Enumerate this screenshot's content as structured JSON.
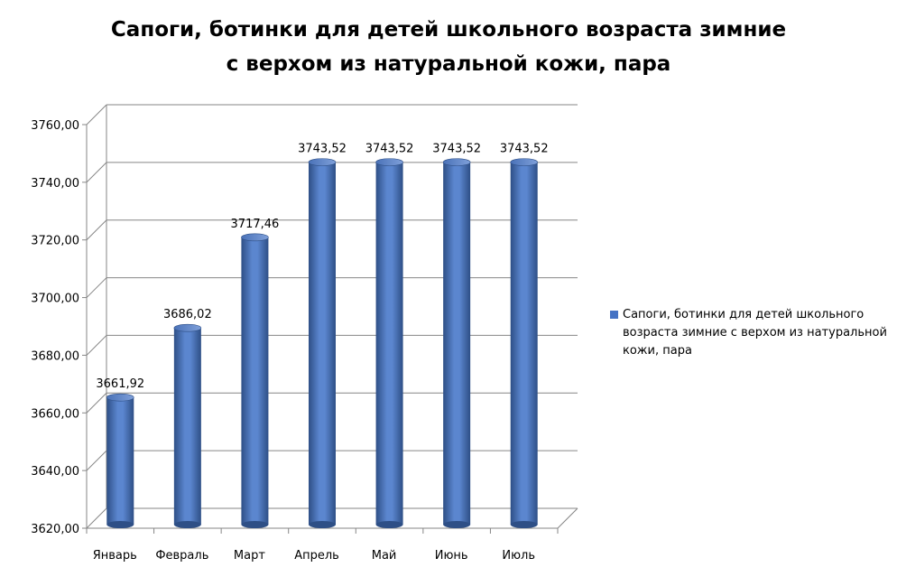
{
  "chart_data": {
    "type": "bar",
    "title_lines": [
      "Сапоги, ботинки для детей школьного возраста зимние",
      "с верхом из натуральной кожи, пара"
    ],
    "categories": [
      "Январь",
      "Февраль",
      "Март",
      "Апрель",
      "Май",
      "Июнь",
      "Июль"
    ],
    "series": [
      {
        "name": "Сапоги, ботинки для детей школьного возраста зимние с верхом из натуральной кожи, пара",
        "values": [
          3661.92,
          3686.02,
          3717.46,
          3743.52,
          3743.52,
          3743.52,
          3743.52
        ],
        "data_labels": [
          "3661,92",
          "3686,02",
          "3717,46",
          "3743,52",
          "3743,52",
          "3743,52",
          "3743,52"
        ],
        "color": "#4472C4"
      }
    ],
    "yticks": [
      "3620,00",
      "3640,00",
      "3660,00",
      "3680,00",
      "3700,00",
      "3720,00",
      "3740,00",
      "3760,00"
    ],
    "ylim": [
      3620,
      3760
    ],
    "ystep": 20,
    "grid": true,
    "legend_position": "right",
    "xlabel": "",
    "ylabel": ""
  }
}
